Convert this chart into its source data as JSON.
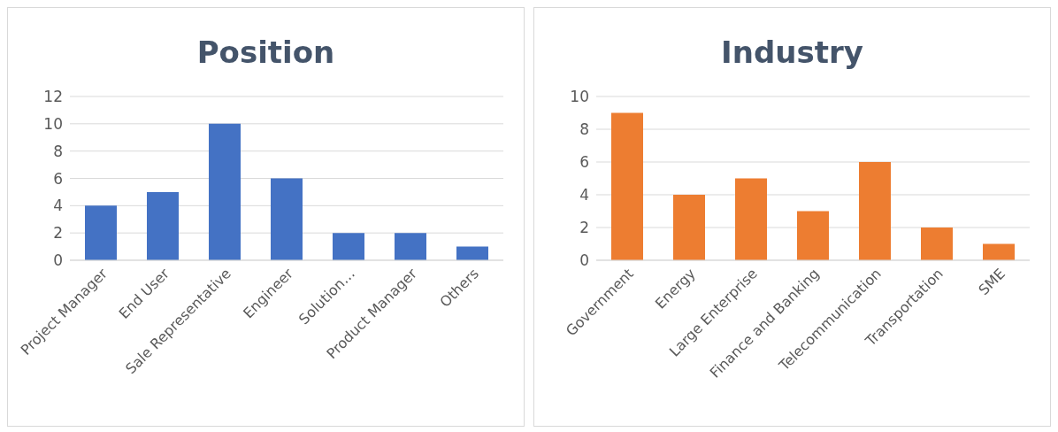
{
  "chart_data": [
    {
      "type": "bar",
      "title": "Position",
      "categories": [
        "Project Manager",
        "End User",
        "Sale Representative",
        "Engineer",
        "Solution…",
        "Product Manager",
        "Others"
      ],
      "values": [
        4,
        5,
        10,
        6,
        2,
        2,
        1
      ],
      "color": "#4472c4",
      "ylim": [
        0,
        12
      ],
      "yticks": [
        0,
        2,
        4,
        6,
        8,
        10,
        12
      ],
      "grid": "y",
      "legend": false
    },
    {
      "type": "bar",
      "title": "Industry",
      "categories": [
        "Government",
        "Energy",
        "Large Enterprise",
        "Finance and Banking",
        "Telecommunication",
        "Transportation",
        "SME"
      ],
      "values": [
        9,
        4,
        5,
        3,
        6,
        2,
        1
      ],
      "color": "#ed7d31",
      "ylim": [
        0,
        10
      ],
      "yticks": [
        0,
        2,
        4,
        6,
        8,
        10
      ],
      "grid": "y",
      "legend": false
    }
  ]
}
